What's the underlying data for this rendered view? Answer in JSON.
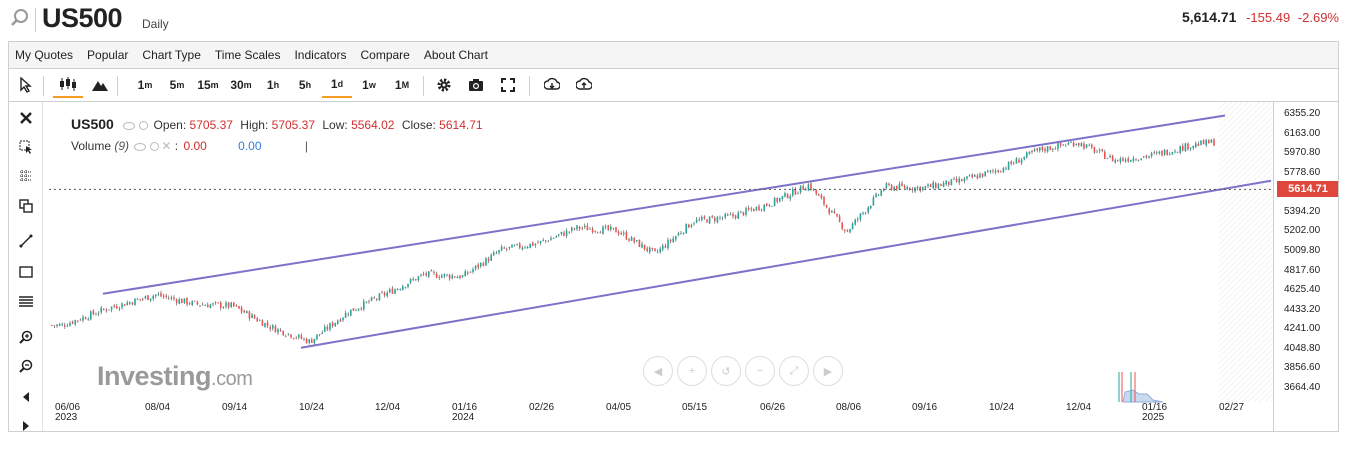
{
  "header": {
    "symbol": "US500",
    "timeframe": "Daily",
    "price": "5,614.71",
    "change": "-155.49",
    "change_pct": "-2.69%"
  },
  "menu": [
    "My Quotes",
    "Popular",
    "Chart Type",
    "Time Scales",
    "Indicators",
    "Compare",
    "About Chart"
  ],
  "toolbar": {
    "intervals": [
      {
        "num": "1",
        "unit": "m"
      },
      {
        "num": "5",
        "unit": "m"
      },
      {
        "num": "15",
        "unit": "m"
      },
      {
        "num": "30",
        "unit": "m"
      },
      {
        "num": "1",
        "unit": "h"
      },
      {
        "num": "5",
        "unit": "h"
      },
      {
        "num": "1",
        "unit": "d"
      },
      {
        "num": "1",
        "unit": "w"
      },
      {
        "num": "1",
        "unit": "M"
      }
    ],
    "active_interval": "1d",
    "icons": [
      "cursor-icon",
      "candlestick-icon",
      "mountain-icon",
      "settings-icon",
      "camera-icon",
      "fullscreen-icon",
      "download-icon",
      "upload-icon"
    ]
  },
  "left_tools": [
    "close-icon",
    "select-icon",
    "crosshair-icon",
    "copy-icon",
    "trendline-icon",
    "rectangle-icon",
    "fibonacci-icon",
    "zoom-in-icon",
    "zoom-out-icon",
    "scroll-left-icon",
    "scroll-right-icon"
  ],
  "legend": {
    "symbol": "US500",
    "open_label": "Open:",
    "open": "5705.37",
    "high_label": "High:",
    "high": "5705.37",
    "low_label": "Low:",
    "low": "5564.02",
    "close_label": "Close:",
    "close": "5614.71",
    "volume_label": "Volume",
    "volume_period": "(9)",
    "volume_v1": "0.00",
    "volume_v2": "0.00"
  },
  "watermark": {
    "brand": "Investing",
    "suffix": ".com"
  },
  "last_price_tag": "5614.71",
  "colors": {
    "up": "#26a69a",
    "down": "#ef5350",
    "channel": "#7b72c9",
    "price_tag": "#e0463c",
    "accent": "#f59d22"
  },
  "chart_data": {
    "type": "candlestick",
    "y_ticks": [
      "6355.20",
      "6163.00",
      "5970.80",
      "5778.60",
      "5394.20",
      "5202.00",
      "5009.80",
      "4817.60",
      "4625.40",
      "4433.20",
      "4241.00",
      "4048.80",
      "3856.60",
      "3664.40"
    ],
    "y_range": [
      3600,
      6400
    ],
    "x_ticks": [
      {
        "label": "06/06",
        "sub": "2023"
      },
      {
        "label": "08/04",
        "sub": ""
      },
      {
        "label": "09/14",
        "sub": ""
      },
      {
        "label": "10/24",
        "sub": ""
      },
      {
        "label": "12/04",
        "sub": ""
      },
      {
        "label": "01/16",
        "sub": "2024"
      },
      {
        "label": "02/26",
        "sub": ""
      },
      {
        "label": "04/05",
        "sub": ""
      },
      {
        "label": "05/15",
        "sub": ""
      },
      {
        "label": "06/26",
        "sub": ""
      },
      {
        "label": "08/06",
        "sub": ""
      },
      {
        "label": "09/16",
        "sub": ""
      },
      {
        "label": "10/24",
        "sub": ""
      },
      {
        "label": "12/04",
        "sub": ""
      },
      {
        "label": "01/16",
        "sub": "2025"
      },
      {
        "label": "02/27",
        "sub": ""
      }
    ],
    "close_path": [
      [
        "06/06",
        4280
      ],
      [
        "07/01",
        4450
      ],
      [
        "08/04",
        4580
      ],
      [
        "09/01",
        4490
      ],
      [
        "09/14",
        4470
      ],
      [
        "10/05",
        4260
      ],
      [
        "10/24",
        4120
      ],
      [
        "11/10",
        4410
      ],
      [
        "12/04",
        4590
      ],
      [
        "12/28",
        4780
      ],
      [
        "01/16",
        4760
      ],
      [
        "02/10",
        5020
      ],
      [
        "02/26",
        5090
      ],
      [
        "03/20",
        5240
      ],
      [
        "04/05",
        5210
      ],
      [
        "04/19",
        4980
      ],
      [
        "05/15",
        5300
      ],
      [
        "06/05",
        5350
      ],
      [
        "06/26",
        5480
      ],
      [
        "07/16",
        5660
      ],
      [
        "08/06",
        5200
      ],
      [
        "08/26",
        5640
      ],
      [
        "09/16",
        5630
      ],
      [
        "10/01",
        5700
      ],
      [
        "10/24",
        5810
      ],
      [
        "11/11",
        6000
      ],
      [
        "12/04",
        6080
      ],
      [
        "12/20",
        5900
      ],
      [
        "01/16",
        5950
      ],
      [
        "02/05",
        6050
      ],
      [
        "02/27",
        6100
      ],
      [
        "03/07",
        5770
      ],
      [
        "03/11",
        5614.71
      ]
    ],
    "channel": {
      "upper": [
        [
          "08/04",
          4590
        ],
        [
          "06/26",
          5610
        ],
        [
          "03/25",
          6340
        ]
      ],
      "lower": [
        [
          "10/24",
          4060
        ],
        [
          "03/25",
          5650
        ]
      ]
    },
    "last_price": 5614.71
  }
}
